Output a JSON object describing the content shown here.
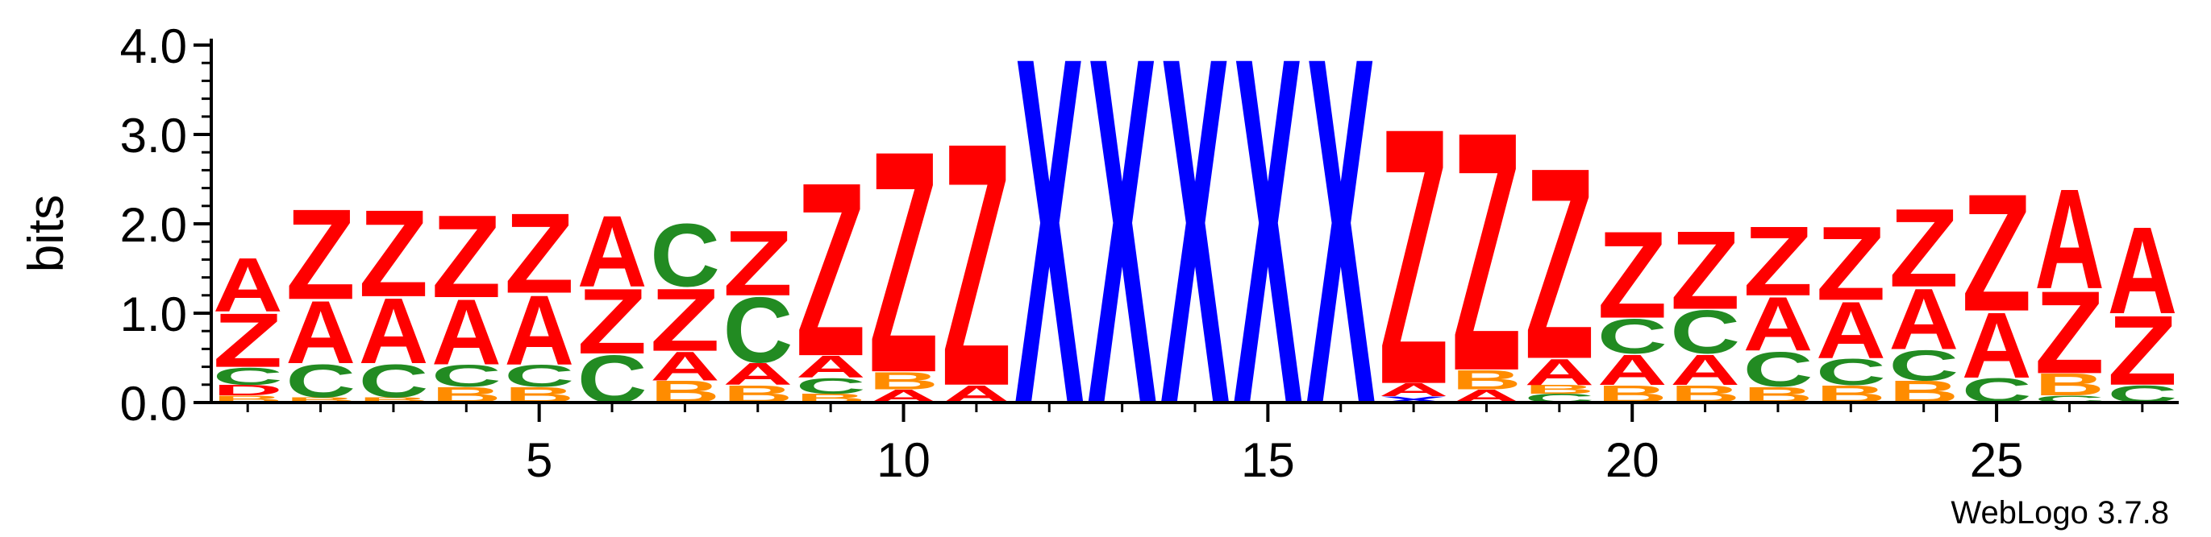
{
  "chart_data": {
    "type": "sequence-logo",
    "ylabel": "bits",
    "ylim": [
      0,
      4.0
    ],
    "yticks": [
      "0.0",
      "1.0",
      "2.0",
      "3.0",
      "4.0"
    ],
    "xticks": [
      5,
      10,
      15,
      20,
      25
    ],
    "positions": 27,
    "footer": "WebLogo 3.7.8",
    "colors": {
      "Z": "#ff0000",
      "A": "#ff0000",
      "C": "#228b22",
      "B": "#ff8c00",
      "X": "#0000ff"
    },
    "columns": [
      [
        [
          "B",
          0.08
        ],
        [
          "D",
          0.12
        ],
        [
          "C",
          0.2
        ],
        [
          "Z",
          0.62
        ],
        [
          "A",
          0.62
        ]
      ],
      [
        [
          "B",
          0.06
        ],
        [
          "C",
          0.38
        ],
        [
          "A",
          0.72
        ],
        [
          "Z",
          1.04
        ]
      ],
      [
        [
          "B",
          0.06
        ],
        [
          "C",
          0.38
        ],
        [
          "A",
          0.75
        ],
        [
          "Z",
          1.0
        ]
      ],
      [
        [
          "B",
          0.18
        ],
        [
          "C",
          0.25
        ],
        [
          "A",
          0.75
        ],
        [
          "Z",
          0.95
        ]
      ],
      [
        [
          "B",
          0.18
        ],
        [
          "C",
          0.25
        ],
        [
          "A",
          0.8
        ],
        [
          "Z",
          0.92
        ]
      ],
      [
        [
          "C",
          0.55
        ],
        [
          "Z",
          0.75
        ],
        [
          "A",
          0.82
        ]
      ],
      [
        [
          "B",
          0.25
        ],
        [
          "A",
          0.33
        ],
        [
          "Z",
          0.72
        ],
        [
          "C",
          0.72
        ]
      ],
      [
        [
          "B",
          0.2
        ],
        [
          "A",
          0.25
        ],
        [
          "C",
          0.75
        ],
        [
          "Z",
          0.75
        ]
      ],
      [
        [
          "B",
          0.1
        ],
        [
          "C",
          0.18
        ],
        [
          "A",
          0.25
        ],
        [
          "Z",
          2.0
        ]
      ],
      [
        [
          "A",
          0.15
        ],
        [
          "B",
          0.2
        ],
        [
          "Z",
          2.55
        ]
      ],
      [
        [
          "A",
          0.2
        ],
        [
          "Z",
          2.8
        ]
      ],
      [
        [
          "X",
          4.0
        ]
      ],
      [
        [
          "X",
          4.0
        ]
      ],
      [
        [
          "X",
          4.0
        ]
      ],
      [
        [
          "X",
          4.0
        ]
      ],
      [
        [
          "X",
          4.0
        ]
      ],
      [
        [
          "X",
          0.07
        ],
        [
          "A",
          0.15
        ],
        [
          "Z",
          2.95
        ]
      ],
      [
        [
          "A",
          0.15
        ],
        [
          "B",
          0.22
        ],
        [
          "Z",
          2.75
        ]
      ],
      [
        [
          "C",
          0.1
        ],
        [
          "B",
          0.1
        ],
        [
          "A",
          0.3
        ],
        [
          "Z",
          2.2
        ]
      ],
      [
        [
          "B",
          0.2
        ],
        [
          "A",
          0.35
        ],
        [
          "C",
          0.4
        ],
        [
          "Z",
          1.0
        ]
      ],
      [
        [
          "B",
          0.2
        ],
        [
          "A",
          0.35
        ],
        [
          "C",
          0.5
        ],
        [
          "Z",
          0.9
        ]
      ],
      [
        [
          "B",
          0.18
        ],
        [
          "C",
          0.4
        ],
        [
          "A",
          0.62
        ],
        [
          "Z",
          0.8
        ]
      ],
      [
        [
          "B",
          0.2
        ],
        [
          "C",
          0.3
        ],
        [
          "A",
          0.65
        ],
        [
          "Z",
          0.85
        ]
      ],
      [
        [
          "B",
          0.25
        ],
        [
          "C",
          0.35
        ],
        [
          "A",
          0.7
        ],
        [
          "Z",
          0.9
        ]
      ],
      [
        [
          "C",
          0.28
        ],
        [
          "A",
          0.75
        ],
        [
          "Z",
          1.35
        ]
      ],
      [
        [
          "C",
          0.08
        ],
        [
          "B",
          0.25
        ],
        [
          "Z",
          0.95
        ],
        [
          "A",
          1.15
        ]
      ],
      [
        [
          "C",
          0.2
        ],
        [
          "Z",
          0.8
        ],
        [
          "A",
          1.0
        ]
      ]
    ]
  }
}
